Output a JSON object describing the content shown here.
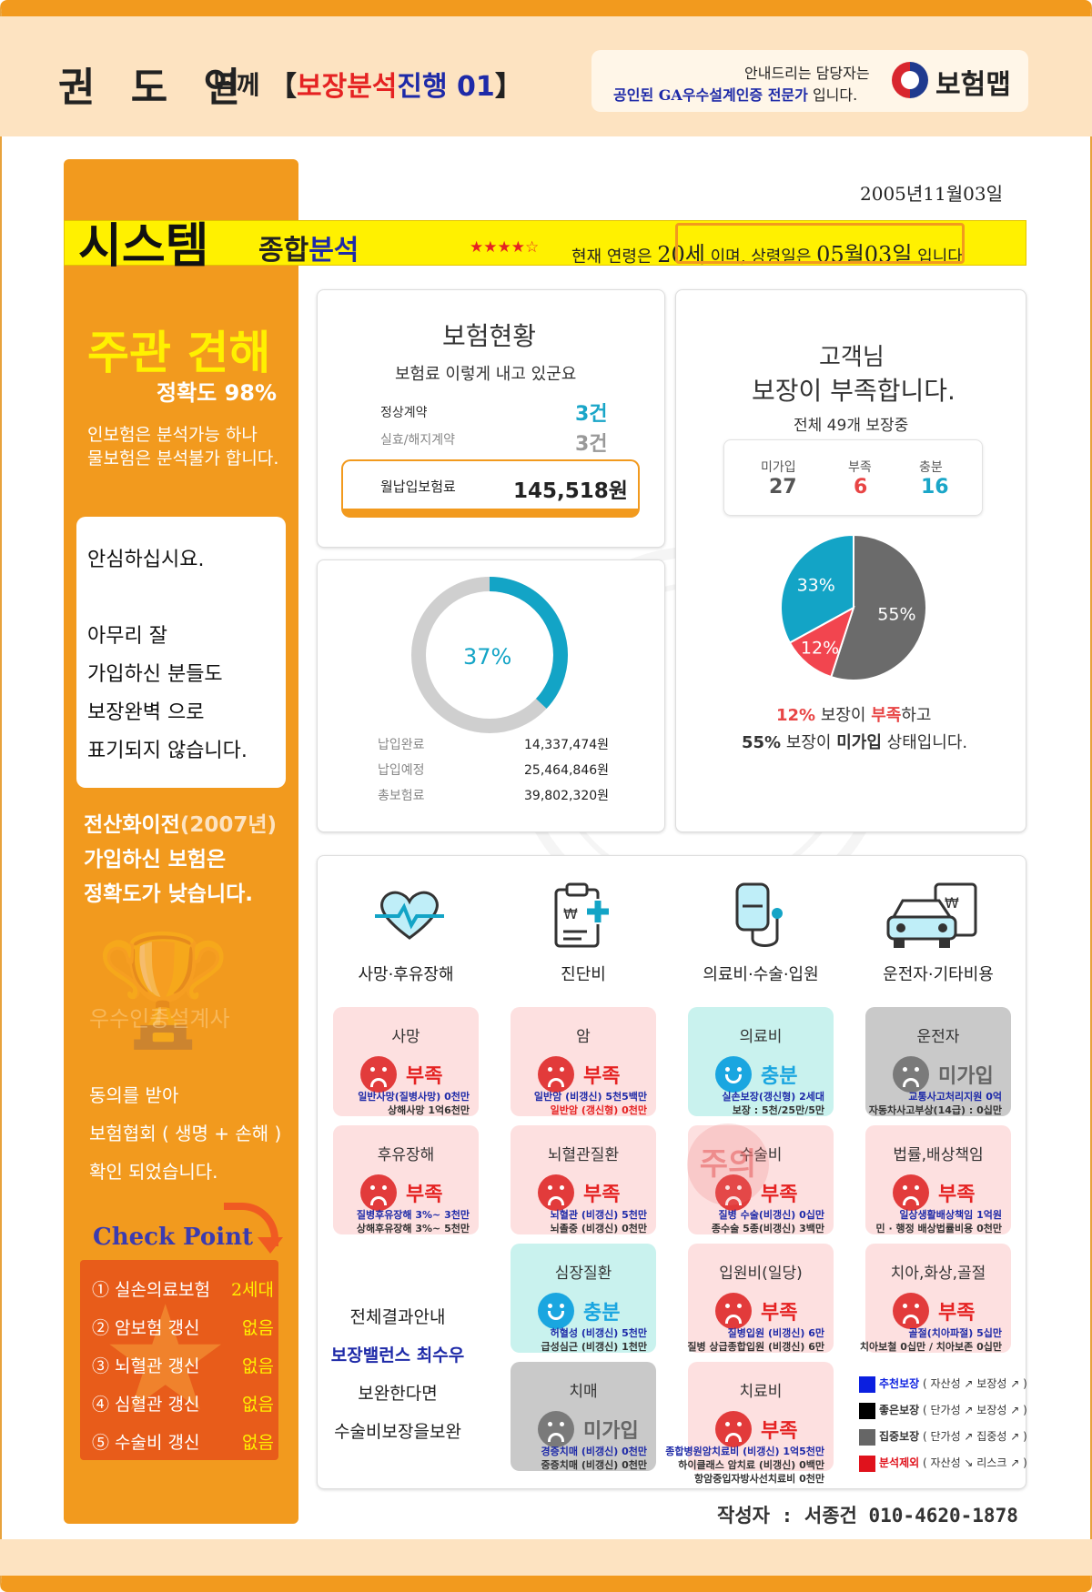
{
  "header": {
    "name": "권 도 연",
    "honorific": "님께",
    "tag_open": "【",
    "tag_red": "보장분석",
    "tag_blue": "진행 01",
    "tag_close": "】",
    "guide_line1": "안내드리는 담당자는",
    "guide_line2_bold": "공인된 GA우수설계인증 전문가",
    "guide_line2_tail": " 입니다.",
    "logo": "보험맵"
  },
  "date": "2005년11월03일",
  "title_bar": {
    "title": "시스템",
    "sub_plain": "종합",
    "sub_blue": "분석",
    "stars": "★★★★☆",
    "age_prefix": "현재 연령은",
    "age": "20세",
    "age_mid": "이며, 상령일은",
    "birthday": "05월03일",
    "age_suffix": "입니다"
  },
  "sidebar": {
    "heading": "주관 견해",
    "accuracy": "정확도 98%",
    "para1": "인보험은 분석가능 하나",
    "para2": "물보험은 분석불가 합니다.",
    "assure": [
      "안심하십시요.",
      "",
      "아무리 잘",
      "가입하신 분들도",
      "보장완벽 으로",
      "표기되지 않습니다."
    ],
    "note1_a": "전산화이전",
    "note1_b": "(2007년)",
    "note2": "가입하신 보험은",
    "note3": "정확도가 낮습니다.",
    "watermark": "우수인증설계사",
    "consent": [
      "동의를 받아",
      "보험협회 ( 생명 + 손해 )",
      "확인 되었습니다."
    ],
    "check_title": "Check Point",
    "checks": [
      {
        "label": "① 실손의료보험",
        "value": "2세대"
      },
      {
        "label": "② 암보험 갱신",
        "value": "없음"
      },
      {
        "label": "③ 뇌혈관 갱신",
        "value": "없음"
      },
      {
        "label": "④ 심혈관 갱신",
        "value": "없음"
      },
      {
        "label": "⑤ 수술비 갱신",
        "value": "없음"
      }
    ]
  },
  "insurance": {
    "title": "보험현황",
    "subtitle": "보험료 이렇게 내고 있군요",
    "normal_label": "정상계약",
    "normal_value": "3건",
    "lapsed_label": "실효/해지계약",
    "lapsed_value": "3건",
    "monthly_label": "월납입보험료",
    "monthly_value": "145,518원"
  },
  "payment": {
    "percent_label": "37%",
    "percent": 37,
    "paid_label": "납입완료",
    "paid_value": "14,337,474원",
    "due_label": "납입예정",
    "due_value": "25,464,846원",
    "total_label": "총보험료",
    "total_value": "39,802,320원"
  },
  "coverage": {
    "line1": "고객님",
    "line2": "보장이 부족합니다.",
    "line3": "전체 49개 보장중",
    "stats": [
      {
        "label": "미가입",
        "value": "27",
        "color": "#555555"
      },
      {
        "label": "부족",
        "value": "6",
        "color": "#e84545"
      },
      {
        "label": "충분",
        "value": "16",
        "color": "#1aa6c8"
      }
    ],
    "summary1_pct": "12%",
    "summary1_mid": " 보장이 ",
    "summary1_word": "부족",
    "summary1_tail": "하고",
    "summary2_pct": "55%",
    "summary2_mid": " 보장이 ",
    "summary2_word": "미가입",
    "summary2_tail": " 상태입니다."
  },
  "chart_data": {
    "type": "pie",
    "slices": [
      {
        "label": "55%",
        "value": 55,
        "color": "#6b6b6b"
      },
      {
        "label": "12%",
        "value": 12,
        "color": "#f2454f"
      },
      {
        "label": "33%",
        "value": 33,
        "color": "#13a4c6"
      }
    ]
  },
  "categories": [
    "사망·후유장해",
    "진단비",
    "의료비·수술·입원",
    "운전자·기타비용"
  ],
  "tiles": [
    {
      "title": "사망",
      "status": "부족",
      "tone": "red",
      "l1": "일반사망(질병사망) 0천만",
      "l2": "상해사망 1억6천만",
      "c1": "b",
      "c2": "k"
    },
    {
      "title": "암",
      "status": "부족",
      "tone": "red",
      "l1": "일반암 (비갱신) 5천5백만",
      "l2": "일반암 (갱신형) 0천만",
      "c1": "b",
      "c2": "r"
    },
    {
      "title": "의료비",
      "status": "충분",
      "tone": "teal",
      "l1": "실손보장(갱신형) 2세대",
      "l2": "보장 : 5천/25만/5만",
      "c1": "b",
      "c2": "k"
    },
    {
      "title": "운전자",
      "status": "미가입",
      "tone": "gray",
      "l1": "교통사고처리지원 0억",
      "l2": "자동차사고부상(14급) : 0십만",
      "c1": "b",
      "c2": "k"
    },
    {
      "title": "후유장해",
      "status": "부족",
      "tone": "red",
      "l1": "질병후유장해 3%~ 3천만",
      "l2": "상해후유장해 3%~ 5천만",
      "c1": "b",
      "c2": "k"
    },
    {
      "title": "뇌혈관질환",
      "status": "부족",
      "tone": "red",
      "l1": "뇌혈관 (비갱신) 5천만",
      "l2": "뇌졸중 (비갱신) 0천만",
      "c1": "b",
      "c2": "k"
    },
    {
      "title": "수술비",
      "status": "부족",
      "tone": "red",
      "l1": "질병 수술(비갱신) 0십만",
      "l2": "종수술 5종(비갱신) 3백만",
      "c1": "b",
      "c2": "k"
    },
    {
      "title": "법률,배상책임",
      "status": "부족",
      "tone": "red",
      "l1": "일상생활배상책임 1억원",
      "l2": "민 · 행정 배상법률비용 0천만",
      "c1": "b",
      "c2": "k"
    },
    {
      "title": "심장질환",
      "status": "충분",
      "tone": "teal",
      "l1": "허혈성 (비갱신) 5천만",
      "l2": "급성심근 (비갱신) 1천만",
      "c1": "b",
      "c2": "k"
    },
    {
      "title": "입원비(일당)",
      "status": "부족",
      "tone": "red",
      "l1": "질병입원 (비갱신) 6만",
      "l2": "질병 상급종합입원 (비갱신) 6만",
      "c1": "b",
      "c2": "k"
    },
    {
      "title": "치아,화상,골절",
      "status": "부족",
      "tone": "red",
      "l1": "골절(치아파절) 5십만",
      "l2": "치아보철 0십만 / 치아보존 0십만",
      "c1": "b",
      "c2": "k"
    },
    {
      "title": "치매",
      "status": "미가입",
      "tone": "gray",
      "l1": "경증치매 (비갱신) 0천만",
      "l2": "중증치매 (비갱신) 0천만",
      "c1": "b",
      "c2": "k"
    },
    {
      "title": "치료비",
      "status": "부족",
      "tone": "red",
      "l1": "종합병원암치료비 (비갱신) 1억5천만",
      "l2": "하이클래스 암치료 (비갱신) 0백만",
      "c1": "b",
      "c2": "k",
      "l3": "항암중입자방사선치료비 0천만"
    }
  ],
  "summary_box": [
    "전체결과안내",
    "보장밸런스 최수우",
    "보완한다면",
    "수술비보장을보완"
  ],
  "legend": [
    {
      "name": "추천보장",
      "desc": " ( 자산성 ↗ 보장성 ↗ )",
      "color": "#0b1fe0"
    },
    {
      "name": "좋은보장",
      "desc": " ( 단가성 ↗ 보장성 ↗ )",
      "color": "#000000"
    },
    {
      "name": "집중보장",
      "desc": " ( 단가성 ↗ 집중성 ↗ )",
      "color": "#666666"
    },
    {
      "name": "분석제외",
      "desc": " ( 자산성 ↘ 리스크 ↗ )",
      "color": "#e0121c"
    }
  ],
  "stamp": "주의",
  "writer": "작성자 : 서종건 010-4620-1878"
}
